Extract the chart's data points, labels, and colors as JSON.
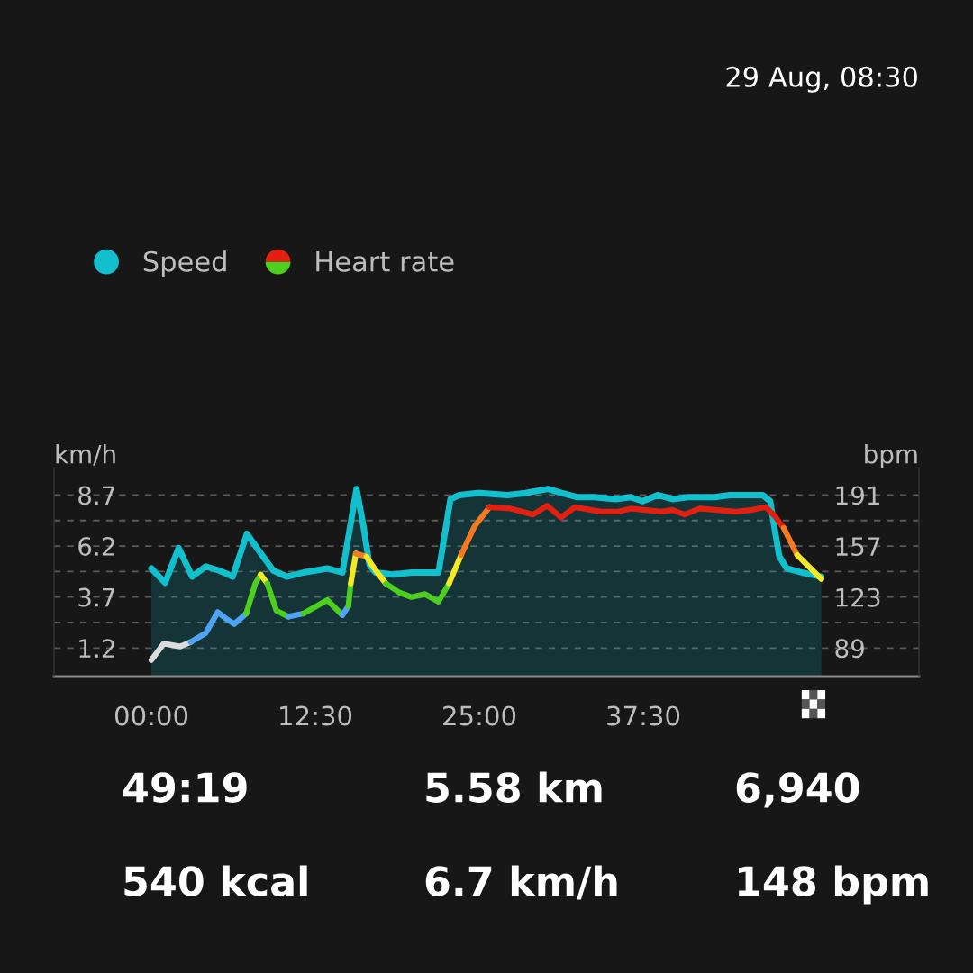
{
  "chart_data": {
    "type": "line",
    "subtitle": "29 Aug, 08:30",
    "ylabel": "km/h",
    "y2label": "bpm",
    "xlim": [
      -7.42,
      58.52
    ],
    "xticks": [
      {
        "value": 0,
        "label": "00:00"
      },
      {
        "value": 12.5,
        "label": "12:30"
      },
      {
        "value": 25,
        "label": "25:00"
      },
      {
        "value": 37.5,
        "label": "37:30"
      }
    ],
    "ylim": [
      -0.2,
      10
    ],
    "yticks": [
      1.2,
      {
        "value": 2.45,
        "label": null
      },
      3.7,
      {
        "value": 4.95,
        "label": null
      },
      6.2,
      {
        "value": 7.45,
        "label": null
      },
      8.7
    ],
    "y2lim": [
      70,
      208.7
    ],
    "y2ticks": [
      89,
      {
        "value": 106,
        "label": null
      },
      123,
      {
        "value": 140,
        "label": null
      },
      157,
      {
        "value": 174,
        "label": null
      },
      191
    ],
    "grid": "y",
    "legend": "top left",
    "series": [
      {
        "name": "Speed",
        "type": "area",
        "color": "#12bfcc",
        "x": [
          0,
          1.05,
          2.08,
          3.11,
          4.14,
          5.17,
          6.2,
          7.28,
          8.38,
          9.29,
          10.32,
          11.59,
          13.41,
          14.56,
          15.64,
          16.16,
          16.62,
          17.08,
          18.45,
          19.83,
          21.89,
          22.8,
          23.49,
          24.86,
          25.09,
          27.15,
          28.52,
          30.24,
          31.27,
          32.42,
          33.79,
          35.39,
          36.54,
          37.45,
          38.6,
          39.74,
          40.89,
          41.8,
          42.95,
          44.09,
          45.69,
          46.61,
          47.18,
          47.53,
          47.87,
          48.44,
          49.59,
          51.08
        ],
        "values": [
          5.1,
          4.4,
          6.1,
          4.7,
          5.2,
          5.0,
          4.7,
          6.8,
          5.8,
          5.0,
          4.7,
          4.9,
          5.1,
          4.9,
          9.0,
          7.2,
          5.3,
          4.9,
          4.8,
          4.9,
          4.9,
          8.5,
          8.7,
          8.8,
          8.8,
          8.7,
          8.8,
          9.0,
          8.8,
          8.6,
          8.6,
          8.5,
          8.6,
          8.4,
          8.7,
          8.5,
          8.6,
          8.6,
          8.6,
          8.7,
          8.7,
          8.7,
          8.4,
          7.0,
          5.7,
          5.1,
          4.9,
          4.7
        ]
      },
      {
        "axis": "y2",
        "color": "#dcdcdc",
        "x": [
          0,
          0.94,
          2.2,
          3.0
        ],
        "values": [
          81,
          92,
          90,
          93
        ]
      },
      {
        "axis": "y2",
        "color": "#4ea3f5",
        "x": [
          3.0,
          4.14,
          5.06,
          5.63,
          6.32,
          7.23
        ],
        "values": [
          93,
          99,
          113,
          109,
          105,
          112
        ]
      },
      {
        "axis": "y2",
        "color": "#4ccf1e",
        "x": [
          7.23,
          7.92,
          8.33
        ],
        "values": [
          112,
          132,
          138
        ]
      },
      {
        "axis": "y2",
        "color": "#f3e926",
        "x": [
          8.33,
          8.84
        ],
        "values": [
          138,
          132
        ]
      },
      {
        "axis": "y2",
        "color": "#4ccf1e",
        "x": [
          8.84,
          9.53,
          10.44
        ],
        "values": [
          132,
          114,
          110
        ]
      },
      {
        "axis": "y2",
        "color": "#4ea3f5",
        "x": [
          10.44,
          11.59
        ],
        "values": [
          110,
          112
        ]
      },
      {
        "axis": "y2",
        "color": "#4ccf1e",
        "x": [
          11.59,
          13.41,
          14.1,
          14.56
        ],
        "values": [
          112,
          121,
          115,
          111
        ]
      },
      {
        "axis": "y2",
        "color": "#4ea3f5",
        "x": [
          14.56,
          15.02
        ],
        "values": [
          111,
          117
        ]
      },
      {
        "axis": "y2",
        "color": "#4ccf1e",
        "x": [
          15.02,
          15.2
        ],
        "values": [
          117,
          132
        ]
      },
      {
        "axis": "y2",
        "color": "#f3e926",
        "x": [
          15.2,
          15.59
        ],
        "values": [
          132,
          152
        ]
      },
      {
        "axis": "y2",
        "color": "#f47a22",
        "x": [
          15.59,
          16.39
        ],
        "values": [
          152,
          150
        ]
      },
      {
        "axis": "y2",
        "color": "#f3e926",
        "x": [
          16.39,
          17.08,
          17.88
        ],
        "values": [
          150,
          141,
          132
        ]
      },
      {
        "axis": "y2",
        "color": "#4ccf1e",
        "x": [
          17.88,
          18.91,
          19.83,
          20.86,
          21.89,
          22.69
        ],
        "values": [
          132,
          126,
          123,
          125,
          120,
          132
        ]
      },
      {
        "axis": "y2",
        "color": "#f3e926",
        "x": [
          22.69,
          23.61
        ],
        "values": [
          132,
          151
        ]
      },
      {
        "axis": "y2",
        "color": "#f47a22",
        "x": [
          23.61,
          24.63,
          25.78
        ],
        "values": [
          151,
          170,
          183
        ]
      },
      {
        "name": "Heart rate",
        "axis": "y2",
        "color": "#e3200f",
        "x": [
          25.78,
          27.38,
          29.1,
          30.17,
          31.23,
          32.3,
          34.25,
          35.62,
          36.54,
          37.68,
          38.83,
          39.74,
          40.66,
          41.8,
          44.55,
          45.69,
          46.84,
          47.53,
          48.21
        ],
        "values": [
          183,
          182,
          178,
          184,
          176,
          183,
          180,
          180,
          182,
          181,
          180,
          181,
          178,
          182,
          180,
          181,
          183,
          177,
          169
        ]
      },
      {
        "axis": "y2",
        "color": "#f47a22",
        "x": [
          48.21,
          49.24
        ],
        "values": [
          169,
          151
        ]
      },
      {
        "axis": "y2",
        "color": "#f3e926",
        "x": [
          49.24,
          51.08
        ],
        "values": [
          151,
          135
        ]
      }
    ],
    "annotations": [
      "49:19",
      "5.58 km",
      "6,940",
      "540 kcal",
      "6.7 km/h",
      "148 bpm"
    ]
  }
}
